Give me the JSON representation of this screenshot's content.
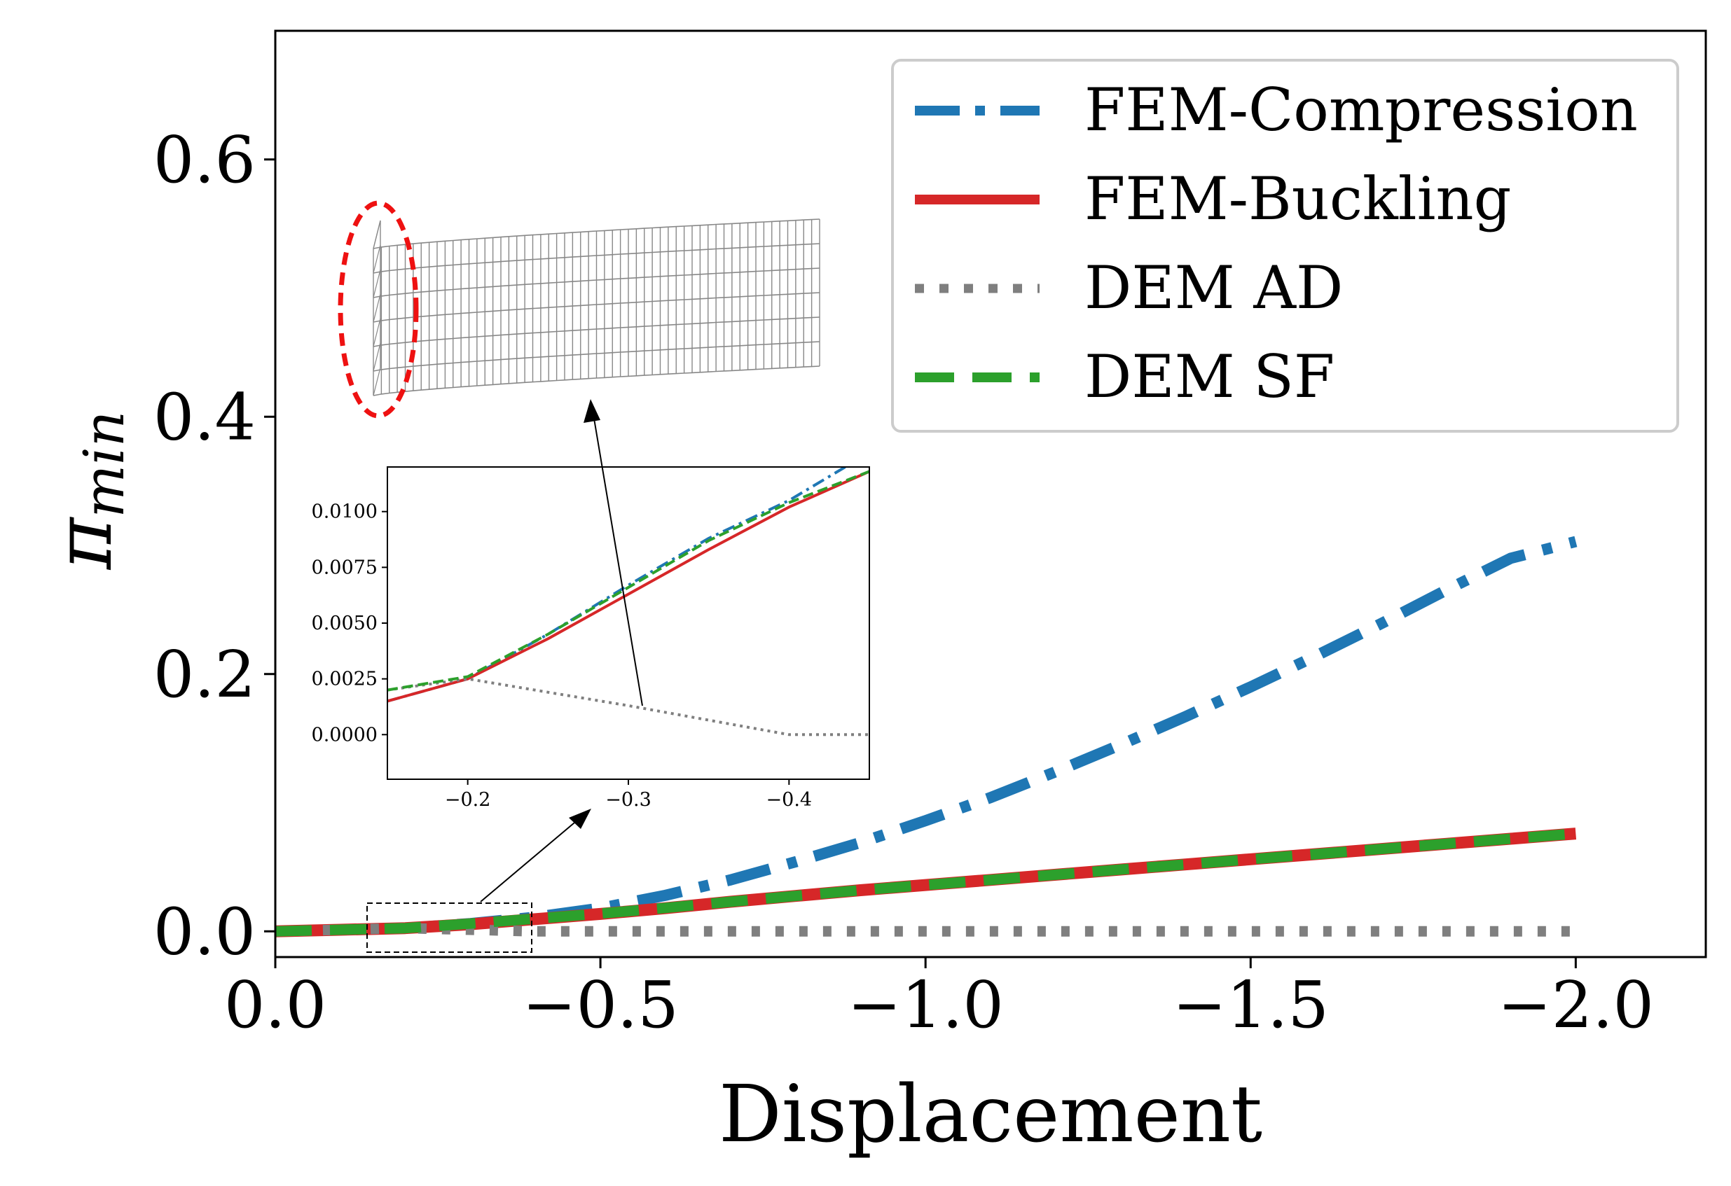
{
  "chart_data": [
    {
      "type": "line",
      "title": "",
      "xlabel": "Displacement",
      "ylabel_main": "π",
      "ylabel_sub": "min",
      "xlim": [
        0.0,
        -2.2
      ],
      "ylim": [
        -0.02,
        0.7
      ],
      "xticks": [
        0.0,
        -0.5,
        -1.0,
        -1.5,
        -2.0
      ],
      "xtick_labels": [
        "0.0",
        "−0.5",
        "−1.0",
        "−1.5",
        "−2.0"
      ],
      "yticks": [
        0.0,
        0.2,
        0.4,
        0.6
      ],
      "ytick_labels": [
        "0.0",
        "0.2",
        "0.4",
        "0.6"
      ],
      "legend_position": "top-right",
      "grid": false,
      "series": [
        {
          "name": "FEM-Compression",
          "color": "#1f77b4",
          "style": "dashdot",
          "x": [
            0.0,
            -0.1,
            -0.2,
            -0.3,
            -0.4,
            -0.5,
            -0.6,
            -0.7,
            -0.8,
            -0.9,
            -1.0,
            -1.1,
            -1.2,
            -1.3,
            -1.4,
            -1.5,
            -1.6,
            -1.7,
            -1.8,
            -1.9,
            -2.0
          ],
          "y": [
            0.0,
            0.0012,
            0.0025,
            0.006,
            0.011,
            0.018,
            0.028,
            0.04,
            0.054,
            0.069,
            0.086,
            0.104,
            0.124,
            0.145,
            0.167,
            0.19,
            0.214,
            0.239,
            0.265,
            0.29,
            0.303
          ]
        },
        {
          "name": "FEM-Buckling",
          "color": "#d62728",
          "style": "solid",
          "x": [
            0.0,
            -0.1,
            -0.2,
            -0.3,
            -0.4,
            -0.5,
            -0.6,
            -0.7,
            -0.8,
            -0.9,
            -1.0,
            -1.1,
            -1.2,
            -1.3,
            -1.4,
            -1.5,
            -1.6,
            -1.7,
            -1.8,
            -1.9,
            -2.0
          ],
          "y": [
            0.0,
            0.0012,
            0.0025,
            0.0055,
            0.0095,
            0.0135,
            0.018,
            0.023,
            0.0275,
            0.032,
            0.036,
            0.04,
            0.044,
            0.048,
            0.052,
            0.056,
            0.06,
            0.064,
            0.068,
            0.072,
            0.076
          ]
        },
        {
          "name": "DEM AD",
          "color": "#7f7f7f",
          "style": "dotted",
          "x": [
            0.0,
            -0.1,
            -0.2,
            -0.3,
            -0.4,
            -0.6,
            -0.8,
            -1.0,
            -1.2,
            -1.4,
            -1.6,
            -1.8,
            -2.0
          ],
          "y": [
            0.0,
            0.0012,
            0.0025,
            0.0012,
            0.0,
            0.0,
            0.0,
            0.0,
            0.0,
            0.0,
            0.0,
            0.0,
            0.0
          ]
        },
        {
          "name": "DEM SF",
          "color": "#2ca02c",
          "style": "dashed",
          "x": [
            0.0,
            -0.1,
            -0.2,
            -0.3,
            -0.4,
            -0.5,
            -0.6,
            -0.7,
            -0.8,
            -0.9,
            -1.0,
            -1.1,
            -1.2,
            -1.3,
            -1.4,
            -1.5,
            -1.6,
            -1.7,
            -1.8,
            -1.9,
            -2.0
          ],
          "y": [
            0.0,
            0.0012,
            0.0025,
            0.006,
            0.0098,
            0.0138,
            0.0182,
            0.023,
            0.0275,
            0.032,
            0.036,
            0.04,
            0.044,
            0.048,
            0.052,
            0.056,
            0.06,
            0.064,
            0.068,
            0.072,
            0.076
          ]
        }
      ]
    },
    {
      "type": "line",
      "title": "",
      "xlabel": "",
      "ylabel": "",
      "xlim": [
        -0.15,
        -0.45
      ],
      "ylim": [
        -0.002,
        0.012
      ],
      "xticks": [
        -0.2,
        -0.3,
        -0.4
      ],
      "xtick_labels": [
        "−0.2",
        "−0.3",
        "−0.4"
      ],
      "yticks": [
        0.0,
        0.0025,
        0.005,
        0.0075,
        0.01
      ],
      "ytick_labels": [
        "0.0000",
        "0.0025",
        "0.0050",
        "0.0075",
        "0.0100"
      ],
      "series": [
        {
          "name": "FEM-Compression",
          "color": "#1f77b4",
          "style": "dashdot",
          "x": [
            -0.15,
            -0.2,
            -0.25,
            -0.3,
            -0.35,
            -0.4,
            -0.435
          ],
          "y": [
            0.0015,
            0.0025,
            0.0045,
            0.0067,
            0.0088,
            0.0105,
            0.012
          ]
        },
        {
          "name": "FEM-Buckling",
          "color": "#d62728",
          "style": "solid",
          "x": [
            -0.15,
            -0.2,
            -0.25,
            -0.3,
            -0.35,
            -0.4,
            -0.45
          ],
          "y": [
            0.0015,
            0.0025,
            0.0043,
            0.0063,
            0.0083,
            0.0102,
            0.0118
          ]
        },
        {
          "name": "DEM AD",
          "color": "#7f7f7f",
          "style": "dotted",
          "x": [
            -0.15,
            -0.2,
            -0.3,
            -0.4,
            -0.45
          ],
          "y": [
            0.002,
            0.0025,
            0.0013,
            0.0,
            0.0
          ]
        },
        {
          "name": "DEM SF",
          "color": "#2ca02c",
          "style": "dashed",
          "x": [
            -0.15,
            -0.2,
            -0.25,
            -0.3,
            -0.35,
            -0.4,
            -0.45
          ],
          "y": [
            0.002,
            0.0026,
            0.0045,
            0.0066,
            0.0087,
            0.0104,
            0.0118
          ]
        }
      ]
    }
  ]
}
